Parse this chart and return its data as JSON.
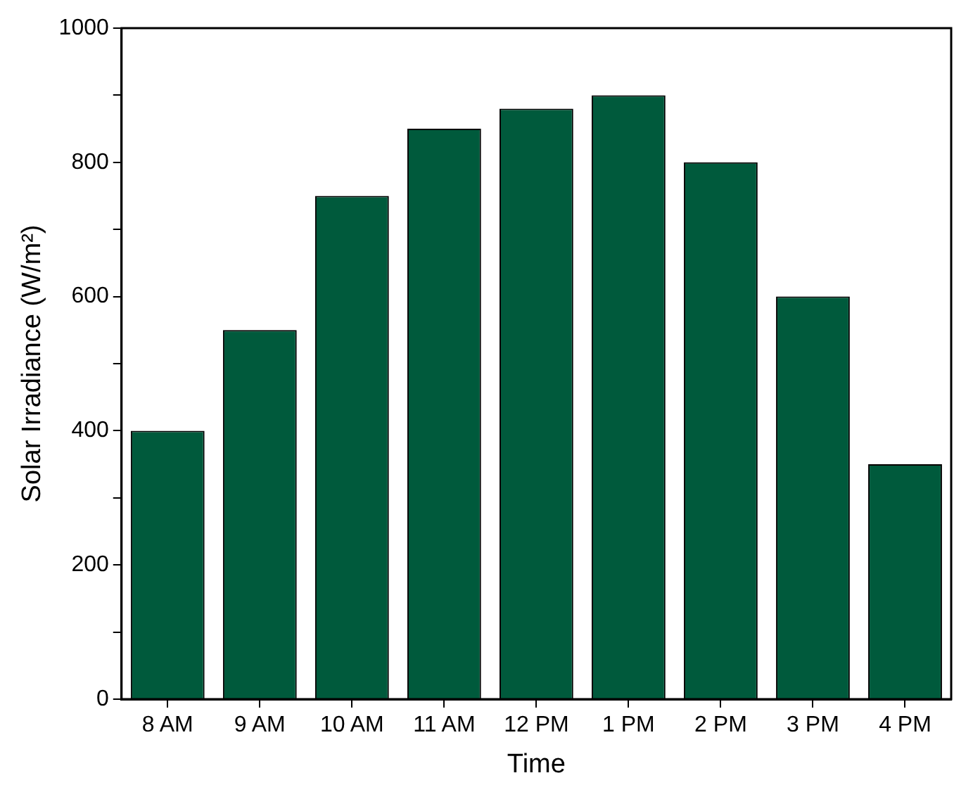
{
  "chart_data": {
    "type": "bar",
    "xlabel": "Time",
    "ylabel": "Solar Irradiance (W/m²)",
    "categories": [
      "8 AM",
      "9 AM",
      "10 AM",
      "11 AM",
      "12 PM",
      "1 PM",
      "2 PM",
      "3 PM",
      "4 PM"
    ],
    "values": [
      400,
      550,
      750,
      850,
      880,
      900,
      800,
      600,
      350
    ],
    "color": "#005a3c",
    "ylim": [
      0,
      1000
    ],
    "yticks": [
      0,
      {
        "value": 100,
        "label": null
      },
      200,
      {
        "value": 300,
        "label": null
      },
      400,
      {
        "value": 500,
        "label": null
      },
      600,
      {
        "value": 700,
        "label": null
      },
      800,
      {
        "value": 900,
        "label": null
      },
      1000
    ],
    "legend": false
  }
}
